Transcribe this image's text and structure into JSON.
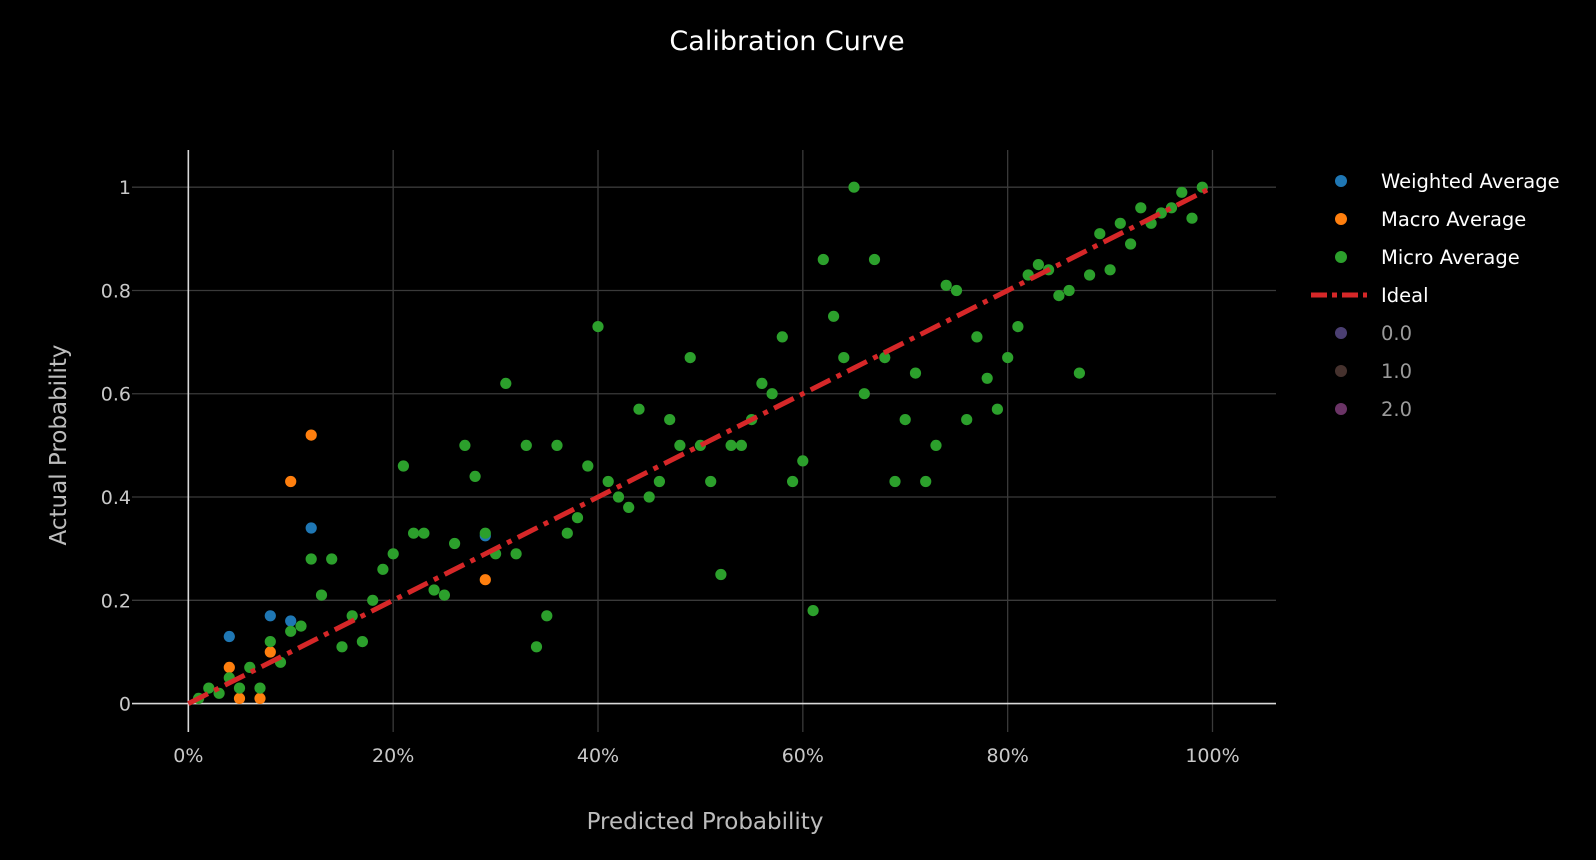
{
  "chart_data": {
    "type": "scatter",
    "title": "Calibration Curve",
    "xlabel": "Predicted Probability",
    "ylabel": "Actual Probability",
    "xlim": [
      -0.055,
      1.062
    ],
    "ylim": [
      -0.055,
      1.072
    ],
    "x_format": "percent",
    "grid": true,
    "legend_position": "right",
    "x_ticks": [
      {
        "value": 0,
        "label": "0%"
      },
      {
        "value": 0.2,
        "label": "20%"
      },
      {
        "value": 0.4,
        "label": "40%"
      },
      {
        "value": 0.6,
        "label": "60%"
      },
      {
        "value": 0.8,
        "label": "80%"
      },
      {
        "value": 1.0,
        "label": "100%"
      }
    ],
    "y_ticks": [
      {
        "value": 0,
        "label": "0"
      },
      {
        "value": 0.2,
        "label": "0.2"
      },
      {
        "value": 0.4,
        "label": "0.4"
      },
      {
        "value": 0.6,
        "label": "0.6"
      },
      {
        "value": 0.8,
        "label": "0.8"
      },
      {
        "value": 1.0,
        "label": "1"
      }
    ],
    "series": [
      {
        "name": "Weighted Average",
        "color": "#1f77b4",
        "mode": "markers",
        "points": [
          [
            0.04,
            0.13
          ],
          [
            0.08,
            0.17
          ],
          [
            0.1,
            0.16
          ],
          [
            0.12,
            0.34
          ],
          [
            0.29,
            0.325
          ]
        ]
      },
      {
        "name": "Macro Average",
        "color": "#ff7f0e",
        "mode": "markers",
        "points": [
          [
            0.04,
            0.07
          ],
          [
            0.05,
            0.01
          ],
          [
            0.07,
            0.01
          ],
          [
            0.08,
            0.1
          ],
          [
            0.1,
            0.43
          ],
          [
            0.12,
            0.52
          ],
          [
            0.29,
            0.24
          ]
        ]
      },
      {
        "name": "Micro Average",
        "color": "#2ca02c",
        "mode": "markers",
        "points": [
          [
            0.01,
            0.01
          ],
          [
            0.02,
            0.03
          ],
          [
            0.03,
            0.02
          ],
          [
            0.04,
            0.05
          ],
          [
            0.05,
            0.03
          ],
          [
            0.06,
            0.07
          ],
          [
            0.07,
            0.03
          ],
          [
            0.08,
            0.12
          ],
          [
            0.09,
            0.08
          ],
          [
            0.1,
            0.14
          ],
          [
            0.11,
            0.15
          ],
          [
            0.12,
            0.28
          ],
          [
            0.13,
            0.21
          ],
          [
            0.14,
            0.28
          ],
          [
            0.15,
            0.11
          ],
          [
            0.16,
            0.17
          ],
          [
            0.17,
            0.12
          ],
          [
            0.18,
            0.2
          ],
          [
            0.19,
            0.26
          ],
          [
            0.2,
            0.29
          ],
          [
            0.21,
            0.46
          ],
          [
            0.22,
            0.33
          ],
          [
            0.23,
            0.33
          ],
          [
            0.24,
            0.22
          ],
          [
            0.25,
            0.21
          ],
          [
            0.26,
            0.31
          ],
          [
            0.27,
            0.5
          ],
          [
            0.28,
            0.44
          ],
          [
            0.29,
            0.33
          ],
          [
            0.3,
            0.29
          ],
          [
            0.31,
            0.62
          ],
          [
            0.32,
            0.29
          ],
          [
            0.33,
            0.5
          ],
          [
            0.34,
            0.11
          ],
          [
            0.35,
            0.17
          ],
          [
            0.36,
            0.5
          ],
          [
            0.37,
            0.33
          ],
          [
            0.38,
            0.36
          ],
          [
            0.39,
            0.46
          ],
          [
            0.4,
            0.73
          ],
          [
            0.41,
            0.43
          ],
          [
            0.42,
            0.4
          ],
          [
            0.43,
            0.38
          ],
          [
            0.44,
            0.57
          ],
          [
            0.45,
            0.4
          ],
          [
            0.46,
            0.43
          ],
          [
            0.47,
            0.55
          ],
          [
            0.48,
            0.5
          ],
          [
            0.49,
            0.67
          ],
          [
            0.5,
            0.5
          ],
          [
            0.51,
            0.43
          ],
          [
            0.52,
            0.25
          ],
          [
            0.53,
            0.5
          ],
          [
            0.54,
            0.5
          ],
          [
            0.55,
            0.55
          ],
          [
            0.56,
            0.62
          ],
          [
            0.57,
            0.6
          ],
          [
            0.58,
            0.71
          ],
          [
            0.59,
            0.43
          ],
          [
            0.6,
            0.47
          ],
          [
            0.61,
            0.18
          ],
          [
            0.62,
            0.86
          ],
          [
            0.63,
            0.75
          ],
          [
            0.64,
            0.67
          ],
          [
            0.65,
            1.0
          ],
          [
            0.66,
            0.6
          ],
          [
            0.67,
            0.86
          ],
          [
            0.68,
            0.67
          ],
          [
            0.69,
            0.43
          ],
          [
            0.7,
            0.55
          ],
          [
            0.71,
            0.64
          ],
          [
            0.72,
            0.43
          ],
          [
            0.73,
            0.5
          ],
          [
            0.74,
            0.81
          ],
          [
            0.75,
            0.8
          ],
          [
            0.76,
            0.55
          ],
          [
            0.77,
            0.71
          ],
          [
            0.78,
            0.63
          ],
          [
            0.79,
            0.57
          ],
          [
            0.8,
            0.67
          ],
          [
            0.81,
            0.73
          ],
          [
            0.82,
            0.83
          ],
          [
            0.83,
            0.85
          ],
          [
            0.84,
            0.84
          ],
          [
            0.85,
            0.79
          ],
          [
            0.86,
            0.8
          ],
          [
            0.87,
            0.64
          ],
          [
            0.88,
            0.83
          ],
          [
            0.89,
            0.91
          ],
          [
            0.9,
            0.84
          ],
          [
            0.91,
            0.93
          ],
          [
            0.92,
            0.89
          ],
          [
            0.93,
            0.96
          ],
          [
            0.94,
            0.93
          ],
          [
            0.95,
            0.95
          ],
          [
            0.96,
            0.96
          ],
          [
            0.97,
            0.99
          ],
          [
            0.98,
            0.94
          ],
          [
            0.99,
            1.0
          ]
        ]
      },
      {
        "name": "Ideal",
        "color": "#d62728",
        "mode": "line",
        "dash": "dashdot",
        "points": [
          [
            0,
            0
          ],
          [
            1,
            1
          ]
        ]
      },
      {
        "name": "0.0",
        "color": "#4b3f72",
        "mode": "markers",
        "points": []
      },
      {
        "name": "1.0",
        "color": "#46322e",
        "mode": "markers",
        "points": []
      },
      {
        "name": "2.0",
        "color": "#6b3466",
        "mode": "markers",
        "points": []
      }
    ]
  }
}
